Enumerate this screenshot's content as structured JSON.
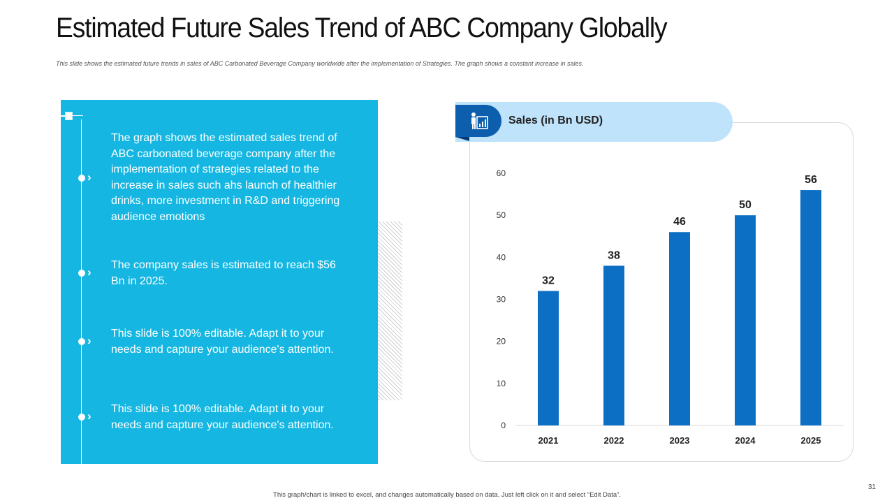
{
  "slide": {
    "title": "Estimated Future Sales Trend of ABC Company Globally",
    "subtitle": "This slide shows the estimated future trends in sales of ABC Carbonated Beverage Company worldwide after the implementation of Strategies. The graph shows a constant increase in sales.",
    "footer": "This graph/chart is linked to excel, and changes automatically based on data. Just left click on it and select “Edit Data”.",
    "page_number": "31"
  },
  "panel": {
    "points": [
      "The graph shows the estimated sales trend of ABC carbonated beverage company after the implementation of strategies related to the increase in sales such ahs launch of healthier drinks, more investment in R&D and triggering audience emotions",
      "The company sales is estimated to reach $56 Bn in 2025.",
      "This slide is 100% editable. Adapt it to your needs and capture your audience's attention.",
      "This slide is 100% editable. Adapt it to your needs and capture your audience's attention."
    ]
  },
  "chart_header": {
    "label": "Sales (in Bn USD)",
    "icon": "presenter-chart-icon"
  },
  "colors": {
    "panel": "#15b7e2",
    "bar": "#0d6fc3",
    "pill": "#bfe3fb",
    "pill_dark": "#0d5fae"
  },
  "chart_data": {
    "type": "bar",
    "title": "Sales (in Bn USD)",
    "categories": [
      "2021",
      "2022",
      "2023",
      "2024",
      "2025"
    ],
    "values": [
      32,
      38,
      46,
      50,
      56
    ],
    "ylim": [
      0,
      60
    ],
    "yticks": [
      0,
      10,
      20,
      30,
      40,
      50,
      60
    ],
    "xlabel": "",
    "ylabel": "",
    "data_labels": true,
    "grid": false
  }
}
